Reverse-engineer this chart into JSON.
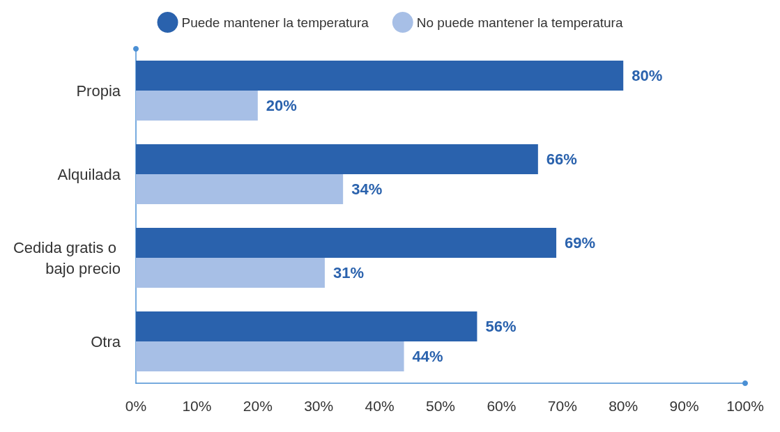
{
  "chart_data": {
    "type": "bar",
    "orientation": "horizontal",
    "categories": [
      "Propia",
      "Alquilada",
      "Cedida gratis o bajo precio",
      "Otra"
    ],
    "series": [
      {
        "name": "Puede mantener la temperatura",
        "color": "#2a62ad",
        "values": [
          80,
          66,
          69,
          56
        ],
        "value_labels": [
          "80%",
          "66%",
          "69%",
          "56%"
        ]
      },
      {
        "name": "No puede mantener la temperatura",
        "color": "#a7bfe6",
        "values": [
          20,
          34,
          31,
          44
        ],
        "value_labels": [
          "20%",
          "34%",
          "31%",
          "44%"
        ]
      }
    ],
    "xlim": [
      0,
      100
    ],
    "xticks": [
      {
        "value": 0,
        "label": "0%"
      },
      {
        "value": 10,
        "label": "10%"
      },
      {
        "value": 20,
        "label": "20%"
      },
      {
        "value": 30,
        "label": "30%"
      },
      {
        "value": 40,
        "label": "40%"
      },
      {
        "value": 50,
        "label": "50%"
      },
      {
        "value": 60,
        "label": "60%"
      },
      {
        "value": 70,
        "label": "70%"
      },
      {
        "value": 80,
        "label": "80%"
      },
      {
        "value": 90,
        "label": "90%"
      },
      {
        "value": 100,
        "label": "100%"
      }
    ],
    "grid": false,
    "legend": "top"
  }
}
